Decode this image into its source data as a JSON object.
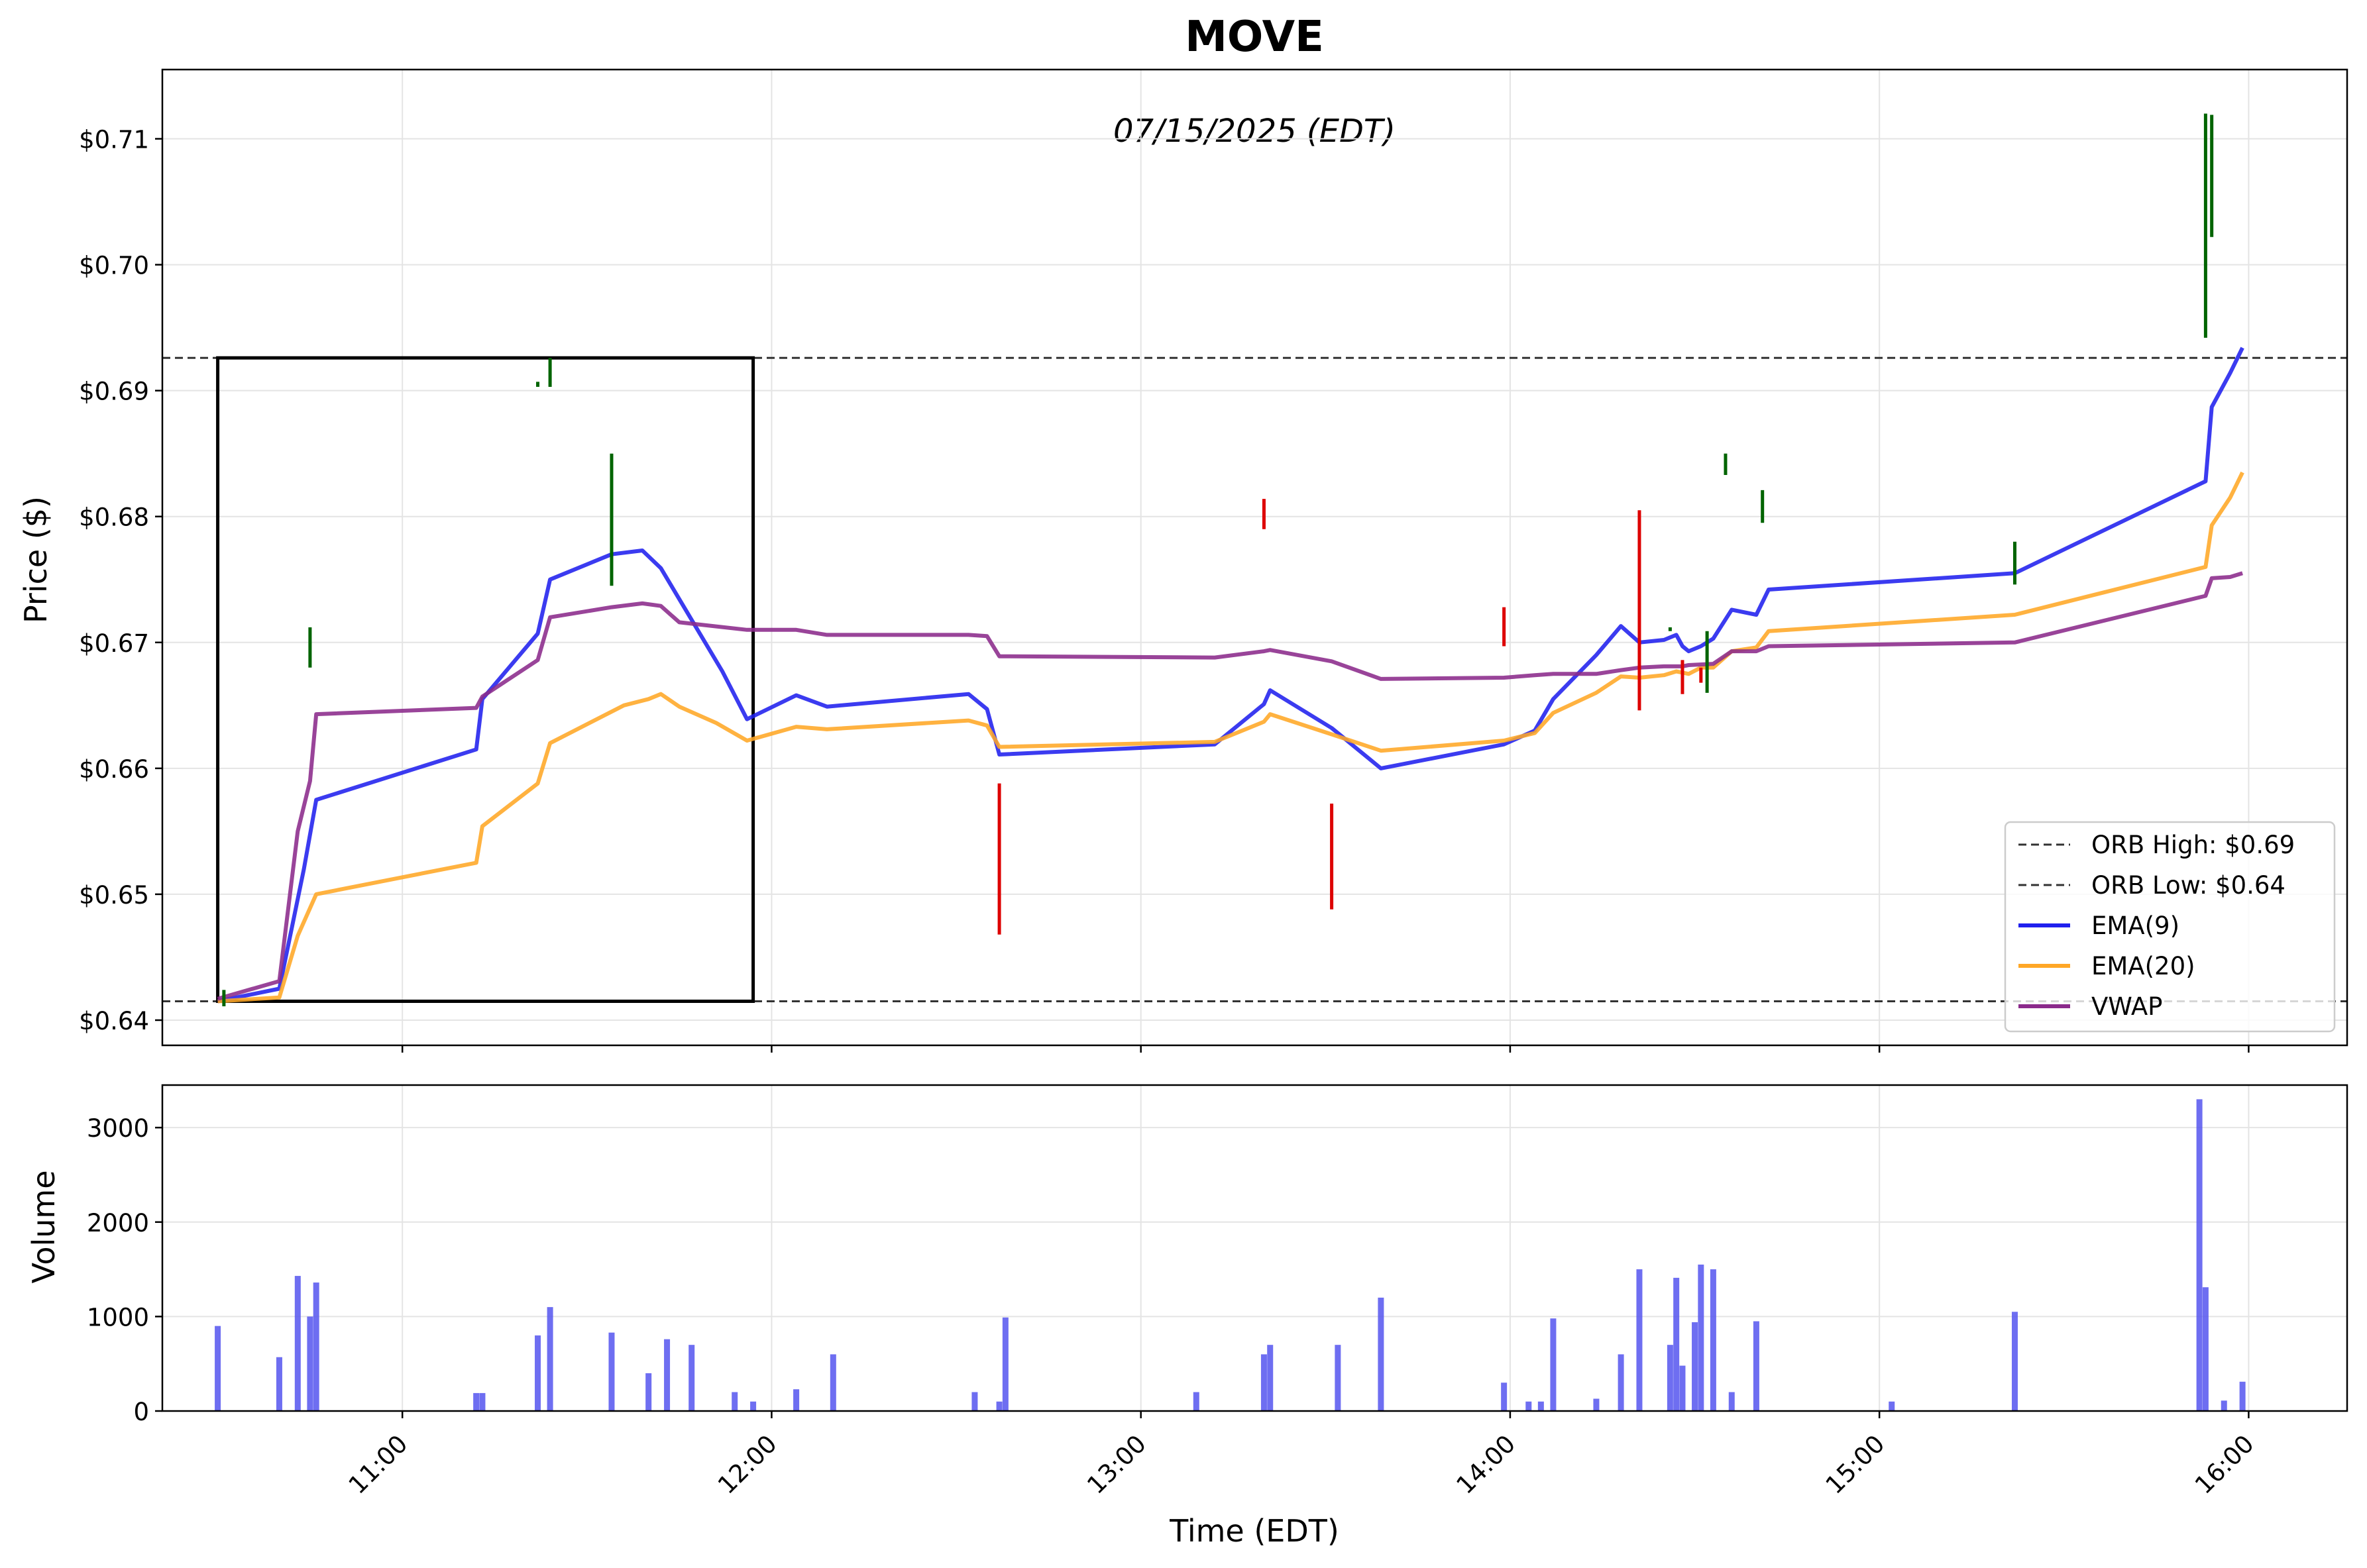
{
  "chart_data": [
    {
      "type": "line",
      "panel": "price",
      "title": "MOVE",
      "subtitle": "07/15/2025 (EDT)",
      "ylabel": "Price ($)",
      "xlim": [
        "10:21",
        "16:16"
      ],
      "ylim": [
        0.638,
        0.7155
      ],
      "x_ticks": [
        "11:00",
        "12:00",
        "13:00",
        "14:00",
        "15:00",
        "16:00"
      ],
      "y_ticks": [
        "$0.64",
        "$0.65",
        "$0.66",
        "$0.67",
        "$0.68",
        "$0.69",
        "$0.70",
        "$0.71"
      ],
      "y_tick_values": [
        0.64,
        0.65,
        0.66,
        0.67,
        0.68,
        0.69,
        0.7,
        0.71
      ],
      "grid": true,
      "legend_position": "bottom-right",
      "legend": [
        {
          "label": "ORB High: $0.69",
          "style": "dashed",
          "color": "#333333"
        },
        {
          "label": "ORB Low: $0.64",
          "style": "dashed",
          "color": "#333333"
        },
        {
          "label": "EMA(9)",
          "style": "solid",
          "color": "#2020ee"
        },
        {
          "label": "EMA(20)",
          "style": "solid",
          "color": "#ffa726"
        },
        {
          "label": "VWAP",
          "style": "solid",
          "color": "#8b2a8b"
        }
      ],
      "orb": {
        "high": 0.6926,
        "low": 0.6415,
        "start": "10:30",
        "end": "11:57"
      },
      "series": [
        {
          "name": "EMA(9)",
          "color": "#2020ee",
          "x": [
            "10:30",
            "10:40",
            "10:44",
            "10:46",
            "11:12",
            "11:13",
            "11:22",
            "11:24",
            "11:34",
            "11:39",
            "11:42",
            "11:52",
            "11:56",
            "12:04",
            "12:09",
            "12:32",
            "12:35",
            "12:37",
            "13:12",
            "13:20",
            "13:21",
            "13:31",
            "13:39",
            "13:59",
            "14:04",
            "14:07",
            "14:14",
            "14:18",
            "14:21",
            "14:25",
            "14:27",
            "14:28",
            "14:29",
            "14:31",
            "14:33",
            "14:36",
            "14:40",
            "14:42",
            "15:22",
            "15:53",
            "15:54",
            "15:57",
            "15:59"
          ],
          "y": [
            0.6415,
            0.6425,
            0.652,
            0.6575,
            0.6615,
            0.6655,
            0.6707,
            0.675,
            0.677,
            0.6773,
            0.6759,
            0.6677,
            0.6639,
            0.6658,
            0.6649,
            0.6659,
            0.6647,
            0.6611,
            0.6619,
            0.6651,
            0.6662,
            0.6632,
            0.66,
            0.6619,
            0.663,
            0.6655,
            0.669,
            0.6713,
            0.67,
            0.6702,
            0.6706,
            0.6697,
            0.6693,
            0.6697,
            0.6703,
            0.6726,
            0.6722,
            0.6742,
            0.6755,
            0.6828,
            0.6887,
            0.6914,
            0.6934
          ]
        },
        {
          "name": "EMA(20)",
          "color": "#ffa726",
          "x": [
            "10:30",
            "10:40",
            "10:43",
            "10:46",
            "11:12",
            "11:13",
            "11:22",
            "11:24",
            "11:36",
            "11:40",
            "11:42",
            "11:45",
            "11:51",
            "11:56",
            "12:04",
            "12:09",
            "12:32",
            "12:35",
            "12:37",
            "13:12",
            "13:20",
            "13:21",
            "13:31",
            "13:39",
            "13:59",
            "14:04",
            "14:07",
            "14:14",
            "14:18",
            "14:21",
            "14:25",
            "14:27",
            "14:28",
            "14:29",
            "14:31",
            "14:33",
            "14:36",
            "14:40",
            "14:42",
            "15:22",
            "15:53",
            "15:54",
            "15:57",
            "15:59"
          ],
          "y": [
            0.6415,
            0.6418,
            0.6467,
            0.65,
            0.6525,
            0.6554,
            0.6588,
            0.662,
            0.665,
            0.6655,
            0.6659,
            0.6649,
            0.6636,
            0.6622,
            0.6633,
            0.6631,
            0.6638,
            0.6634,
            0.6617,
            0.6621,
            0.6637,
            0.6643,
            0.6627,
            0.6614,
            0.6622,
            0.6628,
            0.6644,
            0.666,
            0.6673,
            0.6672,
            0.6674,
            0.6677,
            0.6676,
            0.6675,
            0.668,
            0.668,
            0.6693,
            0.6696,
            0.6709,
            0.6722,
            0.676,
            0.6793,
            0.6815,
            0.6835
          ]
        },
        {
          "name": "VWAP",
          "color": "#8b2a8b",
          "x": [
            "10:30",
            "10:40",
            "10:43",
            "10:45",
            "10:46",
            "11:12",
            "11:13",
            "11:22",
            "11:24",
            "11:34",
            "11:39",
            "11:42",
            "11:45",
            "11:56",
            "12:04",
            "12:09",
            "12:32",
            "12:35",
            "12:37",
            "13:12",
            "13:20",
            "13:21",
            "13:31",
            "13:39",
            "13:59",
            "14:04",
            "14:07",
            "14:14",
            "14:18",
            "14:21",
            "14:25",
            "14:28",
            "14:29",
            "14:33",
            "14:36",
            "14:40",
            "14:42",
            "15:22",
            "15:53",
            "15:54",
            "15:57",
            "15:59"
          ],
          "y": [
            0.6417,
            0.6431,
            0.655,
            0.659,
            0.6643,
            0.6648,
            0.6657,
            0.6686,
            0.672,
            0.6728,
            0.6731,
            0.6729,
            0.6716,
            0.671,
            0.671,
            0.6706,
            0.6706,
            0.6705,
            0.6689,
            0.6688,
            0.6693,
            0.6694,
            0.6685,
            0.6671,
            0.6672,
            0.6674,
            0.6675,
            0.6675,
            0.6678,
            0.668,
            0.6681,
            0.6681,
            0.6682,
            0.6683,
            0.6693,
            0.6693,
            0.6697,
            0.67,
            0.6737,
            0.6751,
            0.6752,
            0.6755
          ]
        }
      ],
      "candles": [
        {
          "x": "10:31",
          "low": 0.6411,
          "high": 0.6424,
          "dir": "up"
        },
        {
          "x": "10:45",
          "low": 0.668,
          "high": 0.6712,
          "dir": "up"
        },
        {
          "x": "11:22",
          "low": 0.6903,
          "high": 0.6907,
          "dir": "up"
        },
        {
          "x": "11:24",
          "low": 0.6903,
          "high": 0.6926,
          "dir": "up"
        },
        {
          "x": "11:34",
          "low": 0.6745,
          "high": 0.685,
          "dir": "up"
        },
        {
          "x": "12:37",
          "low": 0.6468,
          "high": 0.6588,
          "dir": "down"
        },
        {
          "x": "13:20",
          "low": 0.679,
          "high": 0.6814,
          "dir": "down"
        },
        {
          "x": "13:31",
          "low": 0.6488,
          "high": 0.6572,
          "dir": "down"
        },
        {
          "x": "13:59",
          "low": 0.6697,
          "high": 0.6728,
          "dir": "down"
        },
        {
          "x": "14:21",
          "low": 0.6646,
          "high": 0.6805,
          "dir": "down"
        },
        {
          "x": "14:26",
          "low": 0.6709,
          "high": 0.6712,
          "dir": "up"
        },
        {
          "x": "14:28",
          "low": 0.6659,
          "high": 0.6686,
          "dir": "down"
        },
        {
          "x": "14:31",
          "low": 0.6668,
          "high": 0.668,
          "dir": "down"
        },
        {
          "x": "14:32",
          "low": 0.666,
          "high": 0.6709,
          "dir": "up"
        },
        {
          "x": "14:35",
          "low": 0.6833,
          "high": 0.685,
          "dir": "up"
        },
        {
          "x": "14:41",
          "low": 0.6795,
          "high": 0.6821,
          "dir": "up"
        },
        {
          "x": "15:22",
          "low": 0.6746,
          "high": 0.678,
          "dir": "up"
        },
        {
          "x": "15:53",
          "low": 0.6942,
          "high": 0.712,
          "dir": "up"
        },
        {
          "x": "15:54",
          "low": 0.7022,
          "high": 0.7119,
          "dir": "up"
        }
      ],
      "candle_colors": {
        "up": "#006400",
        "down": "#dd0000"
      }
    },
    {
      "type": "bar",
      "panel": "volume",
      "xlabel": "Time (EDT)",
      "ylabel": "Volume",
      "ylim": [
        0,
        3450
      ],
      "y_ticks": [
        "0",
        "1000",
        "2000",
        "3000"
      ],
      "y_tick_values": [
        0,
        1000,
        2000,
        3000
      ],
      "grid": true,
      "color": "#5555ee",
      "x": [
        "10:30",
        "10:40",
        "10:43",
        "10:45",
        "10:46",
        "11:12",
        "11:13",
        "11:22",
        "11:24",
        "11:34",
        "11:40",
        "11:43",
        "11:47",
        "11:54",
        "11:57",
        "12:04",
        "12:10",
        "12:33",
        "12:37",
        "12:38",
        "13:09",
        "13:20",
        "13:21",
        "13:32",
        "13:39",
        "13:59",
        "14:03",
        "14:05",
        "14:07",
        "14:14",
        "14:18",
        "14:21",
        "14:26",
        "14:27",
        "14:28",
        "14:30",
        "14:31",
        "14:33",
        "14:36",
        "14:40",
        "15:02",
        "15:22",
        "15:52",
        "15:53",
        "15:56",
        "15:59"
      ],
      "values": [
        900,
        570,
        1430,
        1000,
        1360,
        190,
        190,
        800,
        1100,
        830,
        400,
        760,
        700,
        200,
        100,
        230,
        600,
        200,
        100,
        990,
        200,
        600,
        700,
        700,
        1200,
        300,
        100,
        100,
        980,
        130,
        600,
        1500,
        700,
        1410,
        480,
        940,
        1550,
        1500,
        200,
        950,
        100,
        1050,
        3300,
        1310,
        110,
        310
      ]
    }
  ]
}
